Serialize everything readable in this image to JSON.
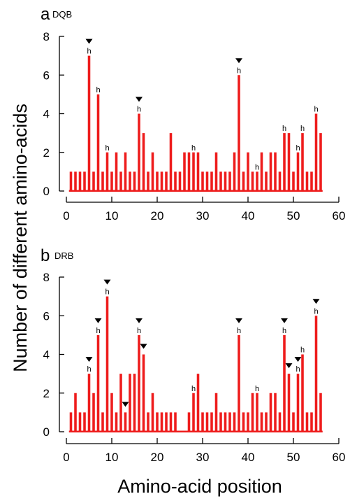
{
  "colors": {
    "bar": "#ee1c1c",
    "axis": "#000000",
    "marker": "#000000"
  },
  "figure": {
    "ylabel": "Number of different  amino-acids",
    "xlabel": "Amino-acid position"
  },
  "chart_data": [
    {
      "type": "bar",
      "panel_letter": "a",
      "panel_tag": "DQB",
      "x": [
        1,
        2,
        3,
        4,
        5,
        6,
        7,
        8,
        9,
        10,
        11,
        12,
        13,
        14,
        15,
        16,
        17,
        18,
        19,
        20,
        21,
        22,
        23,
        24,
        25,
        26,
        27,
        28,
        29,
        30,
        31,
        32,
        33,
        34,
        35,
        36,
        37,
        38,
        39,
        40,
        41,
        42,
        43,
        44,
        45,
        46,
        47,
        48,
        49,
        50,
        51,
        52,
        53,
        54,
        55,
        56
      ],
      "values": [
        1,
        1,
        1,
        1,
        7,
        1,
        5,
        1,
        2,
        1,
        2,
        1,
        2,
        1,
        1,
        4,
        3,
        1,
        2,
        1,
        1,
        1,
        3,
        1,
        1,
        2,
        2,
        2,
        2,
        1,
        1,
        1,
        2,
        1,
        1,
        1,
        2,
        6,
        1,
        2,
        1,
        1,
        2,
        1,
        2,
        2,
        1,
        3,
        3,
        1,
        2,
        3,
        1,
        1,
        4,
        3
      ],
      "annotations": [
        {
          "x": 5,
          "label": "h",
          "arrow": true
        },
        {
          "x": 7,
          "label": "h",
          "arrow": false
        },
        {
          "x": 9,
          "label": "h",
          "arrow": false
        },
        {
          "x": 16,
          "label": "h",
          "arrow": true
        },
        {
          "x": 28,
          "label": "h",
          "arrow": false
        },
        {
          "x": 38,
          "label": "h",
          "arrow": true
        },
        {
          "x": 42,
          "label": "h",
          "arrow": false
        },
        {
          "x": 48,
          "label": "h",
          "arrow": false
        },
        {
          "x": 51,
          "label": "h",
          "arrow": false
        },
        {
          "x": 52,
          "label": "h",
          "arrow": false
        },
        {
          "x": 55,
          "label": "h",
          "arrow": false
        }
      ],
      "xlim": [
        0,
        60
      ],
      "ylim": [
        0,
        8
      ],
      "xticks": [
        0,
        10,
        20,
        30,
        40,
        50,
        60
      ],
      "yticks": [
        0,
        2,
        4,
        6,
        8
      ],
      "grid": false
    },
    {
      "type": "bar",
      "panel_letter": "b",
      "panel_tag": "DRB",
      "x": [
        1,
        2,
        3,
        4,
        5,
        6,
        7,
        8,
        9,
        10,
        11,
        12,
        13,
        14,
        15,
        16,
        17,
        18,
        19,
        20,
        21,
        22,
        23,
        24,
        25,
        26,
        27,
        28,
        29,
        30,
        31,
        32,
        33,
        34,
        35,
        36,
        37,
        38,
        39,
        40,
        41,
        42,
        43,
        44,
        45,
        46,
        47,
        48,
        49,
        50,
        51,
        52,
        53,
        54,
        55,
        56
      ],
      "values": [
        1,
        2,
        1,
        1,
        3,
        2,
        5,
        1,
        7,
        2,
        1,
        3,
        1,
        3,
        3,
        5,
        4,
        1,
        2,
        1,
        1,
        1,
        1,
        1,
        0,
        0,
        1,
        2,
        3,
        1,
        1,
        1,
        2,
        1,
        1,
        1,
        1,
        5,
        1,
        1,
        2,
        2,
        1,
        1,
        2,
        2,
        1,
        5,
        3,
        1,
        3,
        4,
        1,
        1,
        6,
        2
      ],
      "annotations": [
        {
          "x": 5,
          "label": "h",
          "arrow": true
        },
        {
          "x": 7,
          "label": "h",
          "arrow": true
        },
        {
          "x": 9,
          "label": "h",
          "arrow": true
        },
        {
          "x": 13,
          "label": "",
          "arrow": true
        },
        {
          "x": 16,
          "label": "h",
          "arrow": true
        },
        {
          "x": 17,
          "label": "",
          "arrow": true
        },
        {
          "x": 28,
          "label": "h",
          "arrow": false
        },
        {
          "x": 38,
          "label": "h",
          "arrow": true
        },
        {
          "x": 42,
          "label": "h",
          "arrow": false
        },
        {
          "x": 48,
          "label": "h",
          "arrow": true
        },
        {
          "x": 49,
          "label": "",
          "arrow": true
        },
        {
          "x": 51,
          "label": "h",
          "arrow": true
        },
        {
          "x": 52,
          "label": "h",
          "arrow": false
        },
        {
          "x": 55,
          "label": "h",
          "arrow": true
        }
      ],
      "xlim": [
        0,
        60
      ],
      "ylim": [
        0,
        8
      ],
      "xticks": [
        0,
        10,
        20,
        30,
        40,
        50,
        60
      ],
      "yticks": [
        0,
        2,
        4,
        6,
        8
      ],
      "grid": false
    }
  ]
}
